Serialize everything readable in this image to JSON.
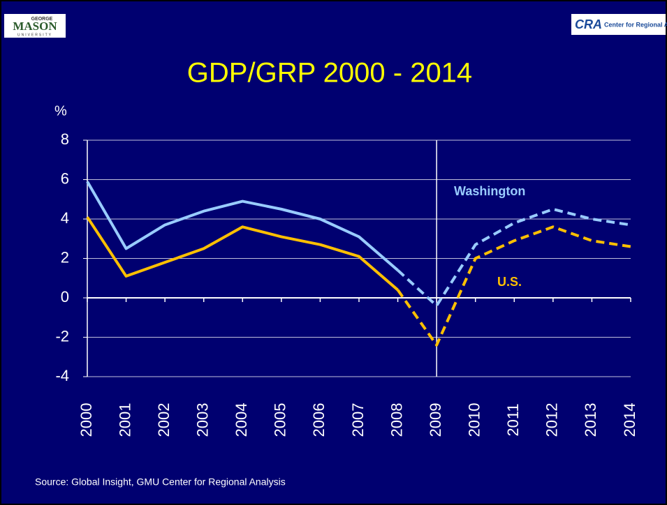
{
  "header": {
    "left_logo": {
      "top": "GEORGE",
      "main": "MASON",
      "bottom": "UNIVERSITY"
    },
    "right_logo": {
      "main": "CRA",
      "text": "Center for Regional Analy"
    }
  },
  "chart_data": {
    "type": "line",
    "title": "GDP/GRP 2000 - 2014",
    "ylabel": "%",
    "categories": [
      "2000",
      "2001",
      "2002",
      "2003",
      "2004",
      "2005",
      "2006",
      "2007",
      "2008",
      "2009",
      "2010",
      "2011",
      "2012",
      "2013",
      "2014"
    ],
    "series": [
      {
        "name": "Washington",
        "color": "#99ccff",
        "values": [
          5.9,
          2.5,
          3.7,
          4.4,
          4.9,
          4.5,
          4.0,
          3.1,
          1.4,
          -0.4,
          2.7,
          3.8,
          4.5,
          4.0,
          3.7
        ]
      },
      {
        "name": "U.S.",
        "color": "#ffc000",
        "values": [
          4.1,
          1.1,
          1.8,
          2.5,
          3.6,
          3.1,
          2.7,
          2.1,
          0.4,
          -2.4,
          2.0,
          2.9,
          3.6,
          2.9,
          2.6
        ]
      }
    ],
    "dashed_from": "2008",
    "reference_line": "2009",
    "ylim": [
      -4,
      8
    ],
    "yticks": [
      -4,
      -2,
      0,
      2,
      4,
      6,
      8
    ],
    "grid": true,
    "source": "Source: Global Insight, GMU Center for Regional Analysis"
  }
}
